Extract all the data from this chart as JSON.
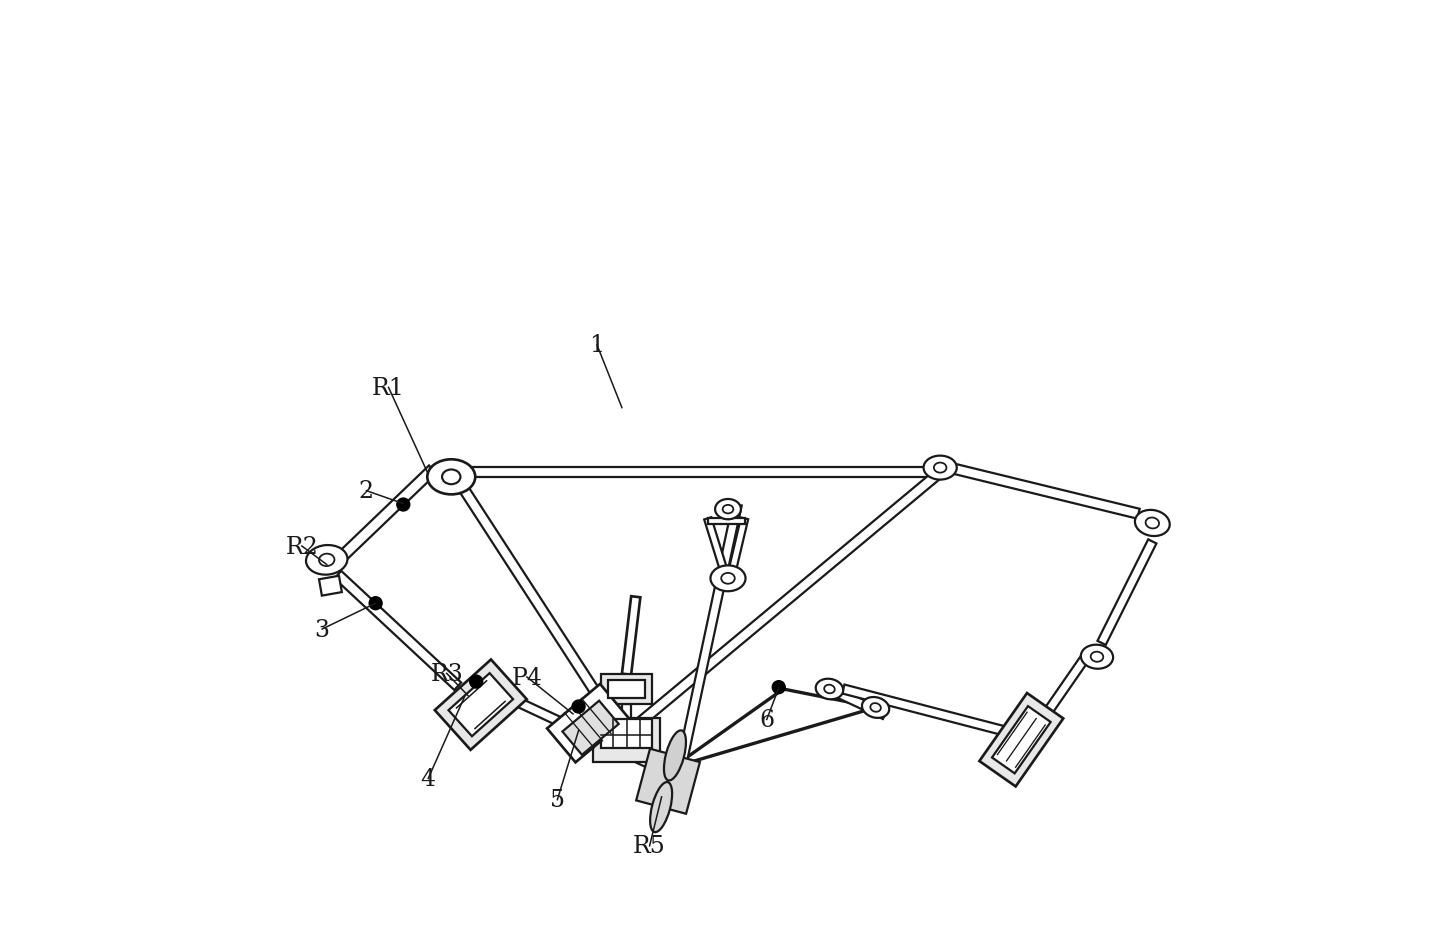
{
  "bg_color": "#ffffff",
  "line_color": "#1a1a1a",
  "lw": 1.6,
  "figsize": [
    14.56,
    9.28
  ],
  "dpi": 100,
  "labels": {
    "1": [
      0.382,
      0.622,
      "1"
    ],
    "2": [
      0.115,
      0.468,
      "2"
    ],
    "3": [
      0.062,
      0.318,
      "3"
    ],
    "4": [
      0.178,
      0.152,
      "4"
    ],
    "5": [
      0.318,
      0.128,
      "5"
    ],
    "6": [
      0.545,
      0.218,
      "6"
    ],
    "R1": [
      0.138,
      0.578,
      "R1"
    ],
    "R2": [
      0.042,
      0.408,
      "R2"
    ],
    "R3": [
      0.198,
      0.268,
      "R3"
    ],
    "P4": [
      0.285,
      0.265,
      "P4"
    ],
    "R5": [
      0.418,
      0.082,
      "R5"
    ]
  },
  "font_size": 17
}
